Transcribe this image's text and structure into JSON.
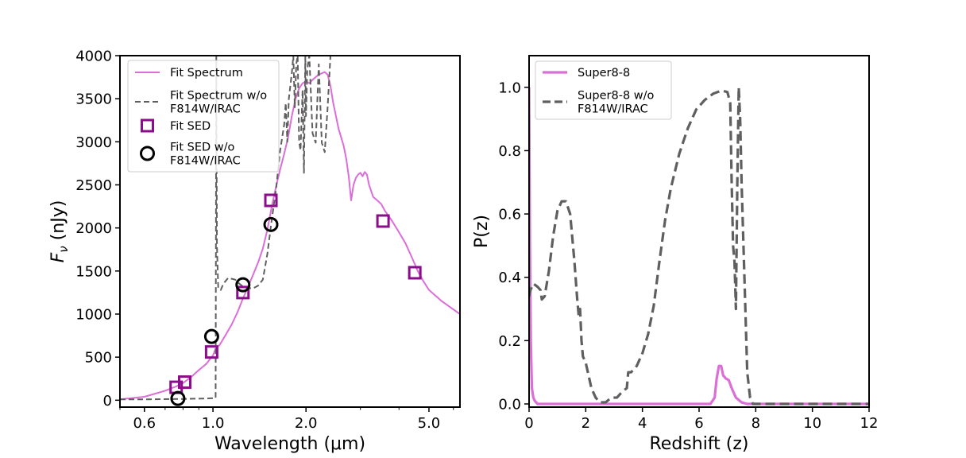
{
  "colors": {
    "spectrum": "#dc6ed8",
    "alt_spectrum": "#5f5f5f",
    "sed": "#8b0d8b",
    "alt_sed": "#000000",
    "pz": "#dc6ed8",
    "alt_pz": "#5f5f5f"
  },
  "chart_data": [
    {
      "type": "line",
      "title": "",
      "xlabel": "Wavelength (μm)",
      "ylabel_prefix": "F",
      "ylabel_sub": "ν",
      "ylabel_suffix": " (nJy)",
      "xscale": "log",
      "xlim": [
        0.5,
        6.3
      ],
      "ylim": [
        -80,
        4000
      ],
      "xticks": [
        {
          "value": 0.6,
          "label": "0.6"
        },
        {
          "value": 1.0,
          "label": "1.0"
        },
        {
          "value": 2.0,
          "label": "2.0"
        },
        {
          "value": 5.0,
          "label": "5.0"
        }
      ],
      "yticks": [
        0,
        500,
        1000,
        1500,
        2000,
        2500,
        3000,
        3500,
        4000
      ],
      "legend_position": "top-left",
      "legend": [
        {
          "lines": [
            "Fit Spectrum"
          ],
          "kind": "line",
          "style": "solid",
          "color_key": "spectrum"
        },
        {
          "lines": [
            "Fit Spectrum w/o",
            "F814W/IRAC"
          ],
          "kind": "line",
          "style": "dashed",
          "color_key": "alt_spectrum"
        },
        {
          "lines": [
            "Fit SED"
          ],
          "kind": "square",
          "color_key": "sed"
        },
        {
          "lines": [
            "Fit SED w/o",
            "F814W/IRAC"
          ],
          "kind": "circle",
          "color_key": "alt_sed"
        }
      ],
      "series": [
        {
          "name": "Fit Spectrum",
          "kind": "line",
          "style": "solid",
          "color_key": "spectrum",
          "points": [
            [
              0.5,
              10
            ],
            [
              0.6,
              40
            ],
            [
              0.7,
              110
            ],
            [
              0.76,
              160
            ],
            [
              0.8,
              200
            ],
            [
              0.85,
              270
            ],
            [
              0.9,
              350
            ],
            [
              0.95,
              420
            ],
            [
              1.0,
              520
            ],
            [
              1.02,
              600
            ],
            [
              1.05,
              640
            ],
            [
              1.1,
              760
            ],
            [
              1.15,
              880
            ],
            [
              1.2,
              1020
            ],
            [
              1.25,
              1180
            ],
            [
              1.3,
              1320
            ],
            [
              1.35,
              1460
            ],
            [
              1.4,
              1600
            ],
            [
              1.45,
              1760
            ],
            [
              1.5,
              1980
            ],
            [
              1.55,
              2250
            ],
            [
              1.6,
              2480
            ],
            [
              1.65,
              2680
            ],
            [
              1.7,
              2860
            ],
            [
              1.75,
              3050
            ],
            [
              1.8,
              3300
            ],
            [
              1.85,
              3500
            ],
            [
              1.9,
              3620
            ],
            [
              1.95,
              3680
            ],
            [
              2.0,
              3700
            ],
            [
              2.05,
              3680
            ],
            [
              2.1,
              3720
            ],
            [
              2.2,
              3780
            ],
            [
              2.3,
              3810
            ],
            [
              2.35,
              3780
            ],
            [
              2.4,
              3650
            ],
            [
              2.45,
              3450
            ],
            [
              2.5,
              3300
            ],
            [
              2.55,
              3150
            ],
            [
              2.6,
              3050
            ],
            [
              2.65,
              2950
            ],
            [
              2.7,
              2800
            ],
            [
              2.75,
              2600
            ],
            [
              2.8,
              2320
            ],
            [
              2.85,
              2500
            ],
            [
              2.9,
              2580
            ],
            [
              2.95,
              2620
            ],
            [
              3.0,
              2640
            ],
            [
              3.05,
              2600
            ],
            [
              3.1,
              2650
            ],
            [
              3.15,
              2620
            ],
            [
              3.2,
              2500
            ],
            [
              3.3,
              2360
            ],
            [
              3.4,
              2320
            ],
            [
              3.5,
              2280
            ],
            [
              3.6,
              2200
            ],
            [
              3.8,
              2080
            ],
            [
              4.0,
              1950
            ],
            [
              4.2,
              1820
            ],
            [
              4.4,
              1660
            ],
            [
              4.6,
              1500
            ],
            [
              4.8,
              1380
            ],
            [
              5.0,
              1280
            ],
            [
              5.5,
              1150
            ],
            [
              6.3,
              1000
            ]
          ]
        },
        {
          "name": "Fit Spectrum w/o F814W/IRAC",
          "kind": "line",
          "style": "dashed",
          "color_key": "alt_spectrum",
          "points": [
            [
              0.5,
              10
            ],
            [
              0.6,
              10
            ],
            [
              0.8,
              15
            ],
            [
              0.95,
              20
            ],
            [
              1.02,
              25
            ],
            [
              1.025,
              4000
            ],
            [
              1.03,
              1800
            ],
            [
              1.04,
              1300
            ],
            [
              1.06,
              1280
            ],
            [
              1.08,
              1350
            ],
            [
              1.12,
              1420
            ],
            [
              1.18,
              1400
            ],
            [
              1.22,
              1350
            ],
            [
              1.25,
              1320
            ],
            [
              1.3,
              1300
            ],
            [
              1.35,
              1300
            ],
            [
              1.4,
              1330
            ],
            [
              1.45,
              1400
            ],
            [
              1.5,
              1700
            ],
            [
              1.55,
              2100
            ],
            [
              1.6,
              2450
            ],
            [
              1.65,
              2900
            ],
            [
              1.7,
              3200
            ],
            [
              1.72,
              3450
            ],
            [
              1.74,
              3000
            ],
            [
              1.76,
              3500
            ],
            [
              1.78,
              3650
            ],
            [
              1.8,
              3800
            ],
            [
              1.82,
              4000
            ],
            [
              1.84,
              3400
            ],
            [
              1.86,
              3900
            ],
            [
              1.88,
              4000
            ],
            [
              1.9,
              3000
            ],
            [
              1.92,
              2900
            ],
            [
              1.95,
              3600
            ],
            [
              1.97,
              2640
            ],
            [
              1.99,
              4000
            ],
            [
              2.0,
              3300
            ],
            [
              2.02,
              3850
            ],
            [
              2.05,
              4000
            ],
            [
              2.1,
              3100
            ],
            [
              2.15,
              2990
            ],
            [
              2.2,
              3900
            ],
            [
              2.25,
              2990
            ],
            [
              2.3,
              2880
            ],
            [
              2.35,
              3400
            ],
            [
              2.4,
              4000
            ]
          ]
        },
        {
          "name": "Fit SED",
          "kind": "square",
          "color_key": "sed",
          "points": [
            [
              0.76,
              150
            ],
            [
              0.81,
              210
            ],
            [
              0.99,
              560
            ],
            [
              1.25,
              1250
            ],
            [
              1.54,
              2320
            ],
            [
              3.55,
              2080
            ],
            [
              4.5,
              1480
            ]
          ]
        },
        {
          "name": "Fit SED w/o F814W/IRAC",
          "kind": "circle",
          "color_key": "alt_sed",
          "points": [
            [
              0.77,
              20
            ],
            [
              0.99,
              740
            ],
            [
              1.25,
              1340
            ],
            [
              1.54,
              2040
            ]
          ]
        }
      ]
    },
    {
      "type": "line",
      "title": "",
      "xlabel": "Redshift (z)",
      "ylabel": "P(z)",
      "xlim": [
        0,
        12
      ],
      "ylim": [
        -0.01,
        1.1
      ],
      "xticks": [
        0,
        2,
        4,
        6,
        8,
        10,
        12
      ],
      "yticks": [
        {
          "value": 0.0,
          "label": "0.0"
        },
        {
          "value": 0.2,
          "label": "0.2"
        },
        {
          "value": 0.4,
          "label": "0.4"
        },
        {
          "value": 0.6,
          "label": "0.6"
        },
        {
          "value": 0.8,
          "label": "0.8"
        },
        {
          "value": 1.0,
          "label": "1.0"
        }
      ],
      "legend_position": "top-left",
      "legend": [
        {
          "lines": [
            "Super8-8"
          ],
          "kind": "line",
          "style": "solid",
          "color_key": "pz"
        },
        {
          "lines": [
            "Super8-8 w/o",
            "F814W/IRAC"
          ],
          "kind": "line",
          "style": "dashed",
          "color_key": "alt_pz"
        }
      ],
      "series": [
        {
          "name": "Super8-8",
          "kind": "line",
          "style": "solid",
          "color_key": "pz",
          "points": [
            [
              0.0,
              1.0
            ],
            [
              0.03,
              0.5
            ],
            [
              0.06,
              0.2
            ],
            [
              0.1,
              0.05
            ],
            [
              0.15,
              0.02
            ],
            [
              0.2,
              0.01
            ],
            [
              0.3,
              0.0
            ],
            [
              6.4,
              0.0
            ],
            [
              6.55,
              0.02
            ],
            [
              6.62,
              0.08
            ],
            [
              6.7,
              0.12
            ],
            [
              6.78,
              0.12
            ],
            [
              6.85,
              0.09
            ],
            [
              6.95,
              0.08
            ],
            [
              7.05,
              0.075
            ],
            [
              7.15,
              0.05
            ],
            [
              7.3,
              0.02
            ],
            [
              7.5,
              0.005
            ],
            [
              7.7,
              0.0
            ],
            [
              12.0,
              0.0
            ]
          ]
        },
        {
          "name": "Super8-8 w/o F814W/IRAC",
          "kind": "line",
          "style": "dashed",
          "color_key": "alt_pz",
          "points": [
            [
              0.0,
              0.34
            ],
            [
              0.05,
              0.36
            ],
            [
              0.15,
              0.38
            ],
            [
              0.3,
              0.37
            ],
            [
              0.4,
              0.36
            ],
            [
              0.45,
              0.33
            ],
            [
              0.55,
              0.34
            ],
            [
              0.7,
              0.42
            ],
            [
              0.85,
              0.53
            ],
            [
              1.0,
              0.61
            ],
            [
              1.15,
              0.64
            ],
            [
              1.3,
              0.64
            ],
            [
              1.45,
              0.6
            ],
            [
              1.6,
              0.45
            ],
            [
              1.7,
              0.33
            ],
            [
              1.75,
              0.28
            ],
            [
              1.8,
              0.3
            ],
            [
              1.85,
              0.2
            ],
            [
              1.9,
              0.15
            ],
            [
              2.0,
              0.13
            ],
            [
              2.1,
              0.09
            ],
            [
              2.2,
              0.05
            ],
            [
              2.35,
              0.02
            ],
            [
              2.5,
              0.005
            ],
            [
              2.7,
              0.005
            ],
            [
              2.9,
              0.02
            ],
            [
              3.1,
              0.02
            ],
            [
              3.3,
              0.04
            ],
            [
              3.45,
              0.05
            ],
            [
              3.5,
              0.1
            ],
            [
              3.6,
              0.1
            ],
            [
              3.8,
              0.12
            ],
            [
              4.0,
              0.16
            ],
            [
              4.2,
              0.22
            ],
            [
              4.4,
              0.31
            ],
            [
              4.6,
              0.45
            ],
            [
              4.8,
              0.58
            ],
            [
              5.0,
              0.68
            ],
            [
              5.3,
              0.79
            ],
            [
              5.6,
              0.87
            ],
            [
              5.9,
              0.93
            ],
            [
              6.2,
              0.96
            ],
            [
              6.5,
              0.98
            ],
            [
              6.8,
              0.99
            ],
            [
              7.0,
              0.985
            ],
            [
              7.1,
              0.95
            ],
            [
              7.15,
              0.7
            ],
            [
              7.2,
              0.5
            ],
            [
              7.25,
              0.45
            ],
            [
              7.3,
              0.3
            ],
            [
              7.35,
              0.7
            ],
            [
              7.4,
              1.0
            ],
            [
              7.45,
              0.9
            ],
            [
              7.5,
              0.7
            ],
            [
              7.6,
              0.4
            ],
            [
              7.7,
              0.1
            ],
            [
              7.8,
              0.02
            ],
            [
              7.9,
              0.0
            ],
            [
              12.0,
              0.0
            ]
          ]
        }
      ]
    }
  ]
}
